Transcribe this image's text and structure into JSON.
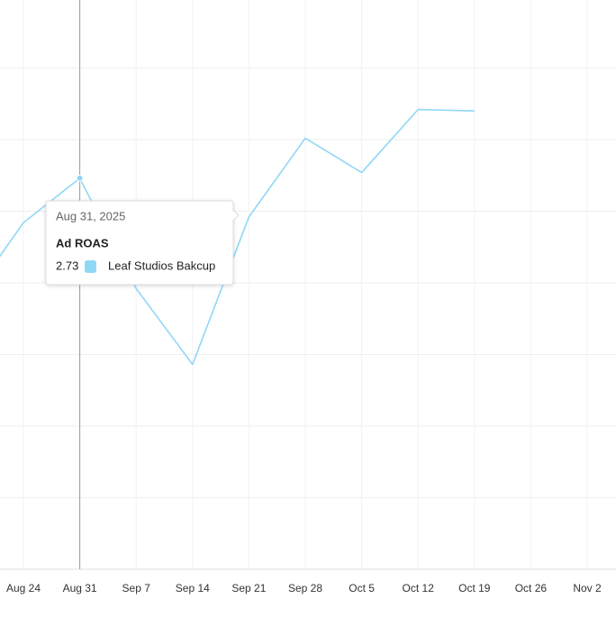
{
  "chart_data": {
    "type": "line",
    "categories": [
      null,
      "Aug 24",
      "Aug 31",
      "Sep 7",
      "Sep 14",
      "Sep 21",
      "Sep 28",
      "Oct 5",
      "Oct 12",
      "Oct 19",
      "Oct 26",
      "Nov 2"
    ],
    "series": [
      {
        "name": "Leaf Studios Bakcup",
        "color": "#8fd8f5",
        "values": [
          1.86,
          2.42,
          2.73,
          1.96,
          1.43,
          2.46,
          3.01,
          2.77,
          3.21,
          3.2,
          null,
          null
        ]
      }
    ],
    "ylim": [
      0,
      4
    ],
    "yticks": [
      0,
      0.5,
      1,
      1.5,
      2,
      2.5,
      3,
      3.5
    ],
    "grid": true,
    "tooltip": {
      "date": "Aug 31, 2025",
      "metric": "Ad ROAS",
      "index": 2
    }
  }
}
